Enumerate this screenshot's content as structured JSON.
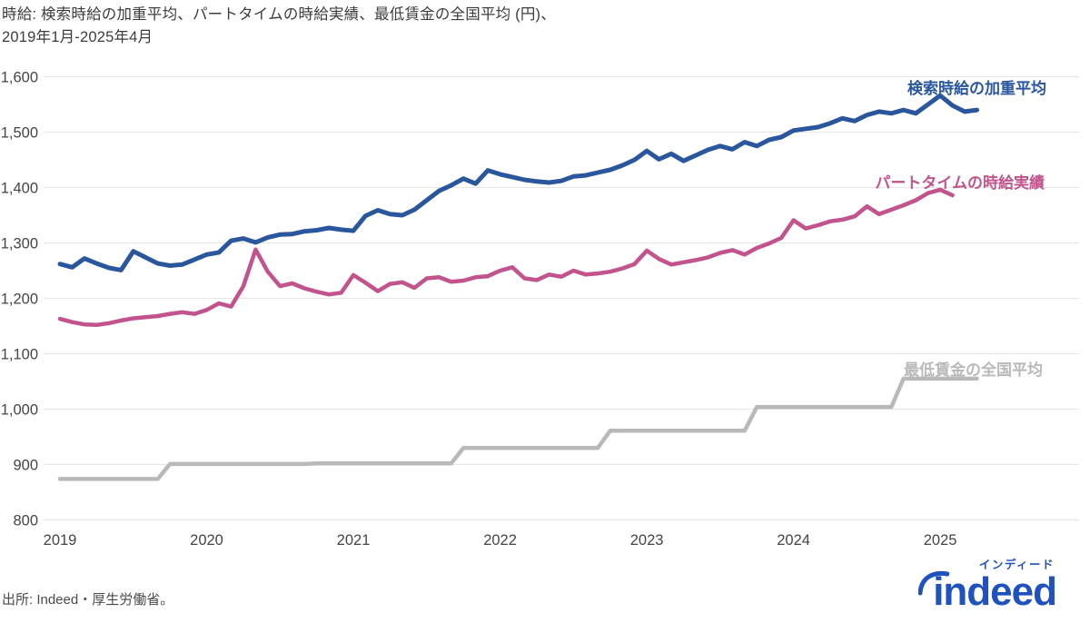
{
  "title": {
    "line1": "時給: 検索時給の加重平均、パートタイムの時給実績、最低賃金の全国平均 (円)、",
    "line2": "2019年1月-2025年4月"
  },
  "source": "出所: Indeed・厚生労働省。",
  "logo": {
    "wordmark": "indeed",
    "katakana": "インディード",
    "color": "#1f51bf"
  },
  "colors": {
    "blue": "#2a569e",
    "pink": "#c2538c",
    "gray": "#b9b9b9",
    "grid": "#e6e6e6",
    "axis_text": "#454545",
    "title_text": "#3c3c3c"
  },
  "chart_data": {
    "type": "line",
    "title": "時給: 検索時給の加重平均、パートタイムの時給実績、最低賃金の全国平均 (円)、2019年1月-2025年4月",
    "x_unit": "month",
    "x_start": "2019-01",
    "x_end": "2025-04",
    "x_tick_labels": [
      "2019",
      "2020",
      "2021",
      "2022",
      "2023",
      "2024",
      "2025"
    ],
    "x_tick_month_indices": [
      0,
      12,
      24,
      36,
      48,
      60,
      72
    ],
    "ylim": [
      800,
      1600
    ],
    "y_ticks": [
      800,
      900,
      1000,
      1100,
      1200,
      1300,
      1400,
      1500,
      1600
    ],
    "y_tick_labels": [
      "800",
      "900",
      "1,000",
      "1,100",
      "1,200",
      "1,300",
      "1,400",
      "1,500",
      "1,600"
    ],
    "grid": true,
    "legend_position": "inline-right",
    "series": [
      {
        "id": "search-wage",
        "name": "検索時給の加重平均",
        "color": "#2a569e",
        "start": "2019-01",
        "end": "2025-04",
        "values": [
          1262,
          1256,
          1272,
          1263,
          1255,
          1251,
          1285,
          1274,
          1263,
          1259,
          1261,
          1270,
          1279,
          1283,
          1304,
          1308,
          1301,
          1310,
          1315,
          1316,
          1321,
          1323,
          1327,
          1324,
          1322,
          1349,
          1359,
          1352,
          1350,
          1360,
          1377,
          1394,
          1404,
          1416,
          1407,
          1431,
          1424,
          1419,
          1414,
          1411,
          1409,
          1412,
          1420,
          1422,
          1427,
          1432,
          1440,
          1450,
          1466,
          1451,
          1461,
          1448,
          1458,
          1468,
          1475,
          1469,
          1482,
          1475,
          1486,
          1491,
          1503,
          1506,
          1509,
          1516,
          1525,
          1520,
          1531,
          1537,
          1534,
          1540,
          1534,
          1550,
          1566,
          1548,
          1537,
          1540
        ]
      },
      {
        "id": "parttime-actual",
        "name": "パートタイムの時給実績",
        "color": "#c2538c",
        "start": "2019-01",
        "end": "2025-02",
        "values": [
          1163,
          1157,
          1153,
          1152,
          1155,
          1160,
          1164,
          1166,
          1168,
          1172,
          1175,
          1172,
          1179,
          1191,
          1185,
          1222,
          1288,
          1248,
          1222,
          1227,
          1218,
          1212,
          1207,
          1210,
          1242,
          1228,
          1213,
          1226,
          1229,
          1219,
          1236,
          1238,
          1230,
          1232,
          1238,
          1240,
          1250,
          1256,
          1236,
          1233,
          1243,
          1239,
          1250,
          1243,
          1245,
          1248,
          1254,
          1262,
          1286,
          1271,
          1261,
          1265,
          1269,
          1274,
          1282,
          1287,
          1279,
          1291,
          1299,
          1309,
          1341,
          1326,
          1332,
          1339,
          1342,
          1348,
          1366,
          1352,
          1360,
          1368,
          1377,
          1390,
          1396,
          1386
        ]
      },
      {
        "id": "minimum-wage",
        "name": "最低賃金の全国平均",
        "color": "#b9b9b9",
        "start": "2019-01",
        "end": "2025-04",
        "values": [
          874,
          874,
          874,
          874,
          874,
          874,
          874,
          874,
          874,
          901,
          901,
          901,
          901,
          901,
          901,
          901,
          901,
          901,
          901,
          901,
          901,
          902,
          902,
          902,
          902,
          902,
          902,
          902,
          902,
          902,
          902,
          902,
          902,
          930,
          930,
          930,
          930,
          930,
          930,
          930,
          930,
          930,
          930,
          930,
          930,
          961,
          961,
          961,
          961,
          961,
          961,
          961,
          961,
          961,
          961,
          961,
          961,
          1004,
          1004,
          1004,
          1004,
          1004,
          1004,
          1004,
          1004,
          1004,
          1004,
          1004,
          1004,
          1055,
          1055,
          1055,
          1055,
          1055,
          1055,
          1055
        ]
      }
    ]
  }
}
